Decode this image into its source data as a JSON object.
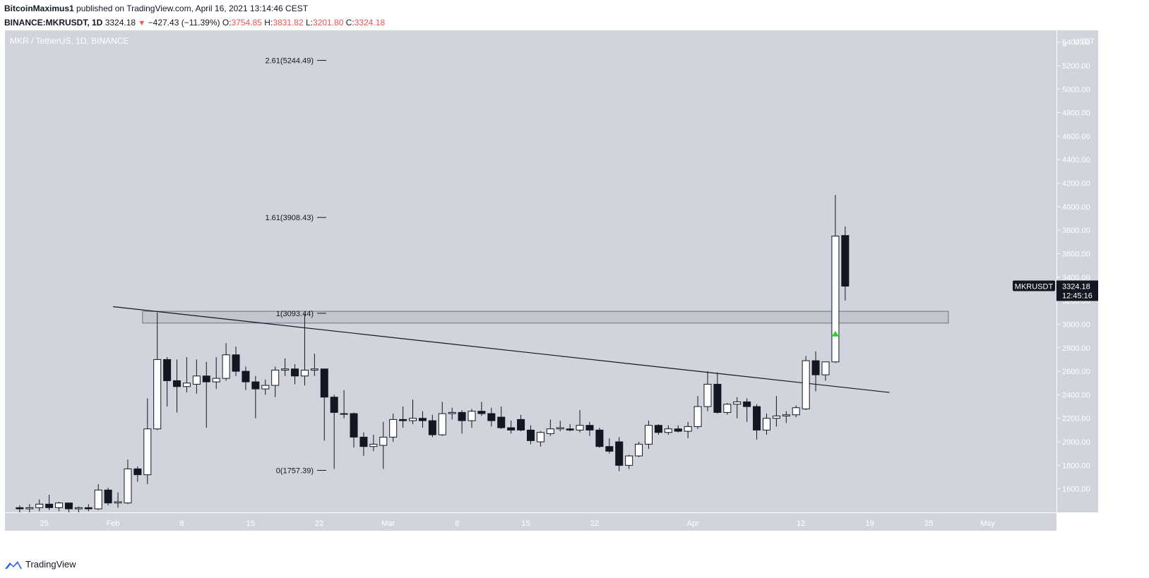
{
  "header": {
    "author": "BitcoinMaximus1",
    "published_text": " published on TradingView.com, April 16, 2021 13:14:46 CEST",
    "symbol_line": "BINANCE:MKRUSDT, 1D",
    "last": "3324.18",
    "change": "−427.43 (−11.39%)",
    "o_label": "O:",
    "o_value": "3754.85",
    "h_label": "H:",
    "h_value": "3831.82",
    "l_label": "L:",
    "l_value": "3201.80",
    "c_label": "C:",
    "c_value": "3324.18"
  },
  "footer": {
    "brand": "TradingView"
  },
  "colors": {
    "background": "#d1d4dc",
    "bull_body": "#ffffff",
    "bear_body": "#131722",
    "label_bg": "#131722",
    "arrow": "#26d226",
    "change_red": "#ef5350"
  },
  "chart_data": {
    "type": "candlestick",
    "title": "MKR / TetherUS, 1D, BINANCE",
    "ylabel": "USDT",
    "ylim": [
      1400,
      5500
    ],
    "y_ticks": [
      1600,
      1800,
      2000,
      2200,
      2400,
      2600,
      2800,
      3000,
      3200,
      3400,
      3600,
      3800,
      4000,
      4200,
      4400,
      4600,
      4800,
      5000,
      5200,
      5400
    ],
    "y_tick_labels": [
      "1600.00",
      "1800.00",
      "2000.00",
      "2200.00",
      "2400.00",
      "2600.00",
      "2800.00",
      "3000.00",
      "3200.00",
      "3400.00",
      "3600.00",
      "3800.00",
      "4000.00",
      "4200.00",
      "4400.00",
      "4600.00",
      "4800.00",
      "5000.00",
      "5200.00",
      "5400.00"
    ],
    "y_top_label": "5",
    "x_start": "2021-01-21",
    "x_end": "2021-05-08",
    "x_ticks": [
      {
        "date": "2021-01-25",
        "label": "25"
      },
      {
        "date": "2021-02-01",
        "label": "Feb"
      },
      {
        "date": "2021-02-08",
        "label": "8"
      },
      {
        "date": "2021-02-15",
        "label": "15"
      },
      {
        "date": "2021-02-22",
        "label": "22"
      },
      {
        "date": "2021-03-01",
        "label": "Mar"
      },
      {
        "date": "2021-03-08",
        "label": "8"
      },
      {
        "date": "2021-03-15",
        "label": "15"
      },
      {
        "date": "2021-03-22",
        "label": "22"
      },
      {
        "date": "2021-04-01",
        "label": "Apr"
      },
      {
        "date": "2021-04-12",
        "label": "12"
      },
      {
        "date": "2021-04-19",
        "label": "19"
      },
      {
        "date": "2021-04-25",
        "label": "25"
      },
      {
        "date": "2021-05-01",
        "label": "May"
      }
    ],
    "candles": [
      {
        "date": "2021-01-22",
        "o": 1440,
        "h": 1460,
        "l": 1400,
        "c": 1430
      },
      {
        "date": "2021-01-23",
        "o": 1430,
        "h": 1470,
        "l": 1400,
        "c": 1440
      },
      {
        "date": "2021-01-24",
        "o": 1440,
        "h": 1510,
        "l": 1410,
        "c": 1470
      },
      {
        "date": "2021-01-25",
        "o": 1470,
        "h": 1550,
        "l": 1420,
        "c": 1440
      },
      {
        "date": "2021-01-26",
        "o": 1440,
        "h": 1490,
        "l": 1410,
        "c": 1480
      },
      {
        "date": "2021-01-27",
        "o": 1480,
        "h": 1480,
        "l": 1400,
        "c": 1430
      },
      {
        "date": "2021-01-28",
        "o": 1430,
        "h": 1450,
        "l": 1400,
        "c": 1440
      },
      {
        "date": "2021-01-29",
        "o": 1440,
        "h": 1470,
        "l": 1410,
        "c": 1430
      },
      {
        "date": "2021-01-30",
        "o": 1430,
        "h": 1640,
        "l": 1420,
        "c": 1590
      },
      {
        "date": "2021-01-31",
        "o": 1590,
        "h": 1610,
        "l": 1460,
        "c": 1480
      },
      {
        "date": "2021-02-01",
        "o": 1480,
        "h": 1570,
        "l": 1440,
        "c": 1490
      },
      {
        "date": "2021-02-02",
        "o": 1480,
        "h": 1850,
        "l": 1470,
        "c": 1770
      },
      {
        "date": "2021-02-03",
        "o": 1770,
        "h": 1790,
        "l": 1660,
        "c": 1720
      },
      {
        "date": "2021-02-04",
        "o": 1720,
        "h": 2370,
        "l": 1640,
        "c": 2110
      },
      {
        "date": "2021-02-05",
        "o": 2110,
        "h": 3100,
        "l": 2100,
        "c": 2700
      },
      {
        "date": "2021-02-06",
        "o": 2700,
        "h": 2720,
        "l": 2300,
        "c": 2520
      },
      {
        "date": "2021-02-07",
        "o": 2520,
        "h": 2700,
        "l": 2250,
        "c": 2470
      },
      {
        "date": "2021-02-08",
        "o": 2470,
        "h": 2720,
        "l": 2420,
        "c": 2500
      },
      {
        "date": "2021-02-09",
        "o": 2490,
        "h": 2700,
        "l": 2410,
        "c": 2560
      },
      {
        "date": "2021-02-10",
        "o": 2560,
        "h": 2680,
        "l": 2120,
        "c": 2510
      },
      {
        "date": "2021-02-11",
        "o": 2510,
        "h": 2720,
        "l": 2450,
        "c": 2540
      },
      {
        "date": "2021-02-12",
        "o": 2540,
        "h": 2840,
        "l": 2520,
        "c": 2740
      },
      {
        "date": "2021-02-13",
        "o": 2740,
        "h": 2810,
        "l": 2560,
        "c": 2600
      },
      {
        "date": "2021-02-14",
        "o": 2600,
        "h": 2640,
        "l": 2440,
        "c": 2510
      },
      {
        "date": "2021-02-15",
        "o": 2510,
        "h": 2560,
        "l": 2200,
        "c": 2450
      },
      {
        "date": "2021-02-16",
        "o": 2450,
        "h": 2530,
        "l": 2400,
        "c": 2480
      },
      {
        "date": "2021-02-17",
        "o": 2480,
        "h": 2640,
        "l": 2380,
        "c": 2610
      },
      {
        "date": "2021-02-18",
        "o": 2610,
        "h": 2710,
        "l": 2560,
        "c": 2620
      },
      {
        "date": "2021-02-19",
        "o": 2620,
        "h": 2660,
        "l": 2490,
        "c": 2560
      },
      {
        "date": "2021-02-20",
        "o": 2560,
        "h": 3090,
        "l": 2480,
        "c": 2610
      },
      {
        "date": "2021-02-21",
        "o": 2610,
        "h": 2750,
        "l": 2560,
        "c": 2620
      },
      {
        "date": "2021-02-22",
        "o": 2620,
        "h": 2620,
        "l": 2010,
        "c": 2380
      },
      {
        "date": "2021-02-23",
        "o": 2380,
        "h": 2400,
        "l": 1770,
        "c": 2250
      },
      {
        "date": "2021-02-24",
        "o": 2240,
        "h": 2440,
        "l": 2200,
        "c": 2240
      },
      {
        "date": "2021-02-25",
        "o": 2240,
        "h": 2250,
        "l": 1950,
        "c": 2040
      },
      {
        "date": "2021-02-26",
        "o": 2040,
        "h": 2080,
        "l": 1880,
        "c": 1960
      },
      {
        "date": "2021-02-27",
        "o": 1960,
        "h": 2060,
        "l": 1920,
        "c": 1980
      },
      {
        "date": "2021-02-28",
        "o": 1970,
        "h": 2170,
        "l": 1770,
        "c": 2040
      },
      {
        "date": "2021-03-01",
        "o": 2040,
        "h": 2240,
        "l": 2000,
        "c": 2190
      },
      {
        "date": "2021-03-02",
        "o": 2190,
        "h": 2300,
        "l": 2120,
        "c": 2180
      },
      {
        "date": "2021-03-03",
        "o": 2180,
        "h": 2360,
        "l": 2150,
        "c": 2200
      },
      {
        "date": "2021-03-04",
        "o": 2200,
        "h": 2260,
        "l": 2120,
        "c": 2180
      },
      {
        "date": "2021-03-05",
        "o": 2180,
        "h": 2230,
        "l": 2040,
        "c": 2060
      },
      {
        "date": "2021-03-06",
        "o": 2060,
        "h": 2340,
        "l": 2050,
        "c": 2240
      },
      {
        "date": "2021-03-07",
        "o": 2240,
        "h": 2290,
        "l": 2190,
        "c": 2250
      },
      {
        "date": "2021-03-08",
        "o": 2250,
        "h": 2270,
        "l": 2070,
        "c": 2180
      },
      {
        "date": "2021-03-09",
        "o": 2180,
        "h": 2280,
        "l": 2120,
        "c": 2260
      },
      {
        "date": "2021-03-10",
        "o": 2260,
        "h": 2340,
        "l": 2220,
        "c": 2240
      },
      {
        "date": "2021-03-11",
        "o": 2240,
        "h": 2290,
        "l": 2130,
        "c": 2180
      },
      {
        "date": "2021-03-12",
        "o": 2210,
        "h": 2300,
        "l": 2110,
        "c": 2120
      },
      {
        "date": "2021-03-13",
        "o": 2120,
        "h": 2180,
        "l": 2070,
        "c": 2100
      },
      {
        "date": "2021-03-14",
        "o": 2190,
        "h": 2230,
        "l": 2090,
        "c": 2100
      },
      {
        "date": "2021-03-15",
        "o": 2100,
        "h": 2140,
        "l": 1980,
        "c": 2010
      },
      {
        "date": "2021-03-16",
        "o": 2000,
        "h": 2090,
        "l": 1960,
        "c": 2080
      },
      {
        "date": "2021-03-17",
        "o": 2070,
        "h": 2190,
        "l": 2050,
        "c": 2110
      },
      {
        "date": "2021-03-18",
        "o": 2110,
        "h": 2180,
        "l": 2090,
        "c": 2120
      },
      {
        "date": "2021-03-19",
        "o": 2110,
        "h": 2150,
        "l": 2090,
        "c": 2100
      },
      {
        "date": "2021-03-20",
        "o": 2100,
        "h": 2270,
        "l": 2080,
        "c": 2140
      },
      {
        "date": "2021-03-21",
        "o": 2140,
        "h": 2170,
        "l": 2050,
        "c": 2100
      },
      {
        "date": "2021-03-22",
        "o": 2100,
        "h": 2120,
        "l": 1950,
        "c": 1960
      },
      {
        "date": "2021-03-23",
        "o": 1960,
        "h": 2030,
        "l": 1900,
        "c": 1920
      },
      {
        "date": "2021-03-24",
        "o": 2000,
        "h": 2040,
        "l": 1750,
        "c": 1800
      },
      {
        "date": "2021-03-25",
        "o": 1800,
        "h": 1890,
        "l": 1770,
        "c": 1880
      },
      {
        "date": "2021-03-26",
        "o": 1880,
        "h": 2000,
        "l": 1870,
        "c": 1980
      },
      {
        "date": "2021-03-27",
        "o": 1980,
        "h": 2180,
        "l": 1940,
        "c": 2140
      },
      {
        "date": "2021-03-28",
        "o": 2140,
        "h": 2150,
        "l": 2060,
        "c": 2080
      },
      {
        "date": "2021-03-29",
        "o": 2080,
        "h": 2140,
        "l": 2060,
        "c": 2110
      },
      {
        "date": "2021-03-30",
        "o": 2110,
        "h": 2140,
        "l": 2080,
        "c": 2090
      },
      {
        "date": "2021-03-31",
        "o": 2090,
        "h": 2170,
        "l": 2030,
        "c": 2130
      },
      {
        "date": "2021-04-01",
        "o": 2130,
        "h": 2390,
        "l": 2110,
        "c": 2300
      },
      {
        "date": "2021-04-02",
        "o": 2300,
        "h": 2600,
        "l": 2260,
        "c": 2490
      },
      {
        "date": "2021-04-03",
        "o": 2490,
        "h": 2590,
        "l": 2240,
        "c": 2250
      },
      {
        "date": "2021-04-04",
        "o": 2250,
        "h": 2330,
        "l": 2230,
        "c": 2320
      },
      {
        "date": "2021-04-05",
        "o": 2320,
        "h": 2380,
        "l": 2200,
        "c": 2340
      },
      {
        "date": "2021-04-06",
        "o": 2340,
        "h": 2370,
        "l": 2170,
        "c": 2300
      },
      {
        "date": "2021-04-07",
        "o": 2300,
        "h": 2320,
        "l": 2020,
        "c": 2100
      },
      {
        "date": "2021-04-08",
        "o": 2100,
        "h": 2240,
        "l": 2060,
        "c": 2200
      },
      {
        "date": "2021-04-09",
        "o": 2200,
        "h": 2390,
        "l": 2130,
        "c": 2220
      },
      {
        "date": "2021-04-10",
        "o": 2220,
        "h": 2260,
        "l": 2160,
        "c": 2230
      },
      {
        "date": "2021-04-11",
        "o": 2230,
        "h": 2310,
        "l": 2210,
        "c": 2290
      },
      {
        "date": "2021-04-12",
        "o": 2280,
        "h": 2730,
        "l": 2270,
        "c": 2690
      },
      {
        "date": "2021-04-13",
        "o": 2690,
        "h": 2770,
        "l": 2430,
        "c": 2570
      },
      {
        "date": "2021-04-14",
        "o": 2570,
        "h": 2660,
        "l": 2520,
        "c": 2680
      },
      {
        "date": "2021-04-15",
        "o": 2680,
        "h": 4100,
        "l": 2670,
        "c": 3750
      },
      {
        "date": "2021-04-16",
        "o": 3754.85,
        "h": 3831.82,
        "l": 3201.8,
        "c": 3324.18
      }
    ],
    "trendline": {
      "start": {
        "date": "2021-02-01",
        "value": 3150
      },
      "end": {
        "date": "2021-04-21",
        "value": 2420
      }
    },
    "zone": {
      "start": "2021-02-04",
      "end": "2021-04-27",
      "low": 3010,
      "high": 3110
    },
    "fib_levels": [
      {
        "label": "2.61(5244.49)",
        "value": 5244.49
      },
      {
        "label": "1.61(3908.43)",
        "value": 3908.43
      },
      {
        "label": "1(3093.44)",
        "value": 3093.44
      },
      {
        "label": "0(1757.39)",
        "value": 1757.39
      }
    ],
    "arrow_marker": {
      "date": "2021-04-15",
      "value": 2920
    },
    "price_label": {
      "symbol": "MKRUSDT",
      "price": "3324.18",
      "countdown": "12:45:16",
      "value": 3324.18
    }
  }
}
